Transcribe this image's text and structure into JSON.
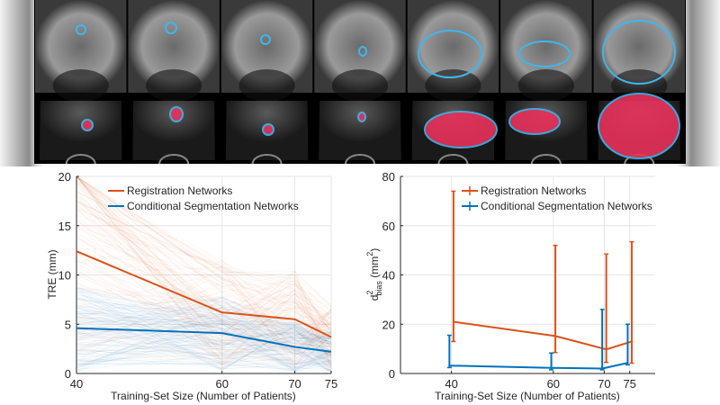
{
  "image_strip": {
    "rows": [
      "mri",
      "ultrasound"
    ],
    "columns": 7,
    "contour_color": "#3fb6ef",
    "fill_color": "#e8315a"
  },
  "chart_data": [
    {
      "type": "line",
      "x": [
        40,
        60,
        70,
        75
      ],
      "xlabel": "Training-Set Size (Number of Patients)",
      "ylabel": "TRE (mm)",
      "xlim": [
        40,
        75
      ],
      "ylim": [
        0,
        20
      ],
      "xticks": [
        40,
        60,
        70,
        75
      ],
      "yticks": [
        0,
        5,
        10,
        15,
        20
      ],
      "grid": true,
      "legend": "top-left",
      "series": [
        {
          "name": "Registration Networks",
          "color": "#d95319",
          "values": [
            12.4,
            6.2,
            5.5,
            3.7
          ]
        },
        {
          "name": "Conditional Segmentation Networks",
          "color": "#0072bd",
          "values": [
            4.6,
            4.1,
            2.7,
            2.2
          ]
        }
      ]
    },
    {
      "type": "line",
      "x": [
        40,
        60,
        70,
        75
      ],
      "xlabel": "Training-Set Size (Number of Patients)",
      "ylabel_parts": {
        "base": "d",
        "sup": "2",
        "sub": "bias",
        "unit_open": " (mm",
        "unit_sup": "2",
        "unit_close": ")"
      },
      "xlim": [
        30,
        80
      ],
      "ylim": [
        0,
        80
      ],
      "xticks": [
        40,
        60,
        70,
        75
      ],
      "yticks": [
        0,
        20,
        40,
        60,
        80
      ],
      "grid": true,
      "legend": "top-right",
      "error_bars": true,
      "series": [
        {
          "name": "Registration Networks",
          "color": "#d95319",
          "values": [
            21,
            15.2,
            9.8,
            13
          ],
          "lower": [
            13,
            8.5,
            4.5,
            4.2
          ],
          "upper": [
            74,
            52,
            48.5,
            53.5
          ]
        },
        {
          "name": "Conditional Segmentation Networks",
          "color": "#0072bd",
          "values": [
            3.2,
            2.3,
            2.0,
            4.3
          ],
          "lower": [
            2.4,
            1.5,
            1.5,
            3.5
          ],
          "upper": [
            15.5,
            8.3,
            26,
            20
          ]
        }
      ]
    }
  ]
}
